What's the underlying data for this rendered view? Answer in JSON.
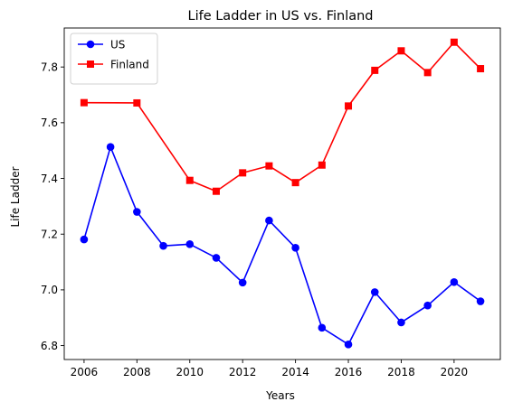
{
  "chart_data": {
    "type": "line",
    "title": "Life Ladder in US vs. Finland",
    "xlabel": "Years",
    "ylabel": "Life Ladder",
    "xlim": [
      2005.25,
      2021.75
    ],
    "ylim": [
      6.75,
      7.94
    ],
    "xticks": [
      2006,
      2008,
      2010,
      2012,
      2014,
      2016,
      2018,
      2020
    ],
    "yticks": [
      6.8,
      7.0,
      7.2,
      7.4,
      7.6,
      7.8
    ],
    "grid": false,
    "legend": "top-left",
    "series": [
      {
        "name": "US",
        "color": "#0000ff",
        "marker": "circle",
        "x": [
          2006,
          2007,
          2008,
          2009,
          2010,
          2011,
          2012,
          2013,
          2014,
          2015,
          2016,
          2017,
          2018,
          2019,
          2020,
          2021
        ],
        "values": [
          7.181,
          7.513,
          7.28,
          7.158,
          7.164,
          7.115,
          7.026,
          7.249,
          7.151,
          6.864,
          6.804,
          6.992,
          6.883,
          6.944,
          7.028,
          6.959
        ]
      },
      {
        "name": "Finland",
        "color": "#ff0000",
        "marker": "square",
        "x": [
          2006,
          2008,
          2010,
          2011,
          2012,
          2013,
          2014,
          2015,
          2016,
          2017,
          2018,
          2019,
          2020,
          2021
        ],
        "values": [
          7.672,
          7.671,
          7.393,
          7.354,
          7.42,
          7.445,
          7.385,
          7.448,
          7.66,
          7.788,
          7.858,
          7.78,
          7.889,
          7.794
        ]
      }
    ]
  }
}
